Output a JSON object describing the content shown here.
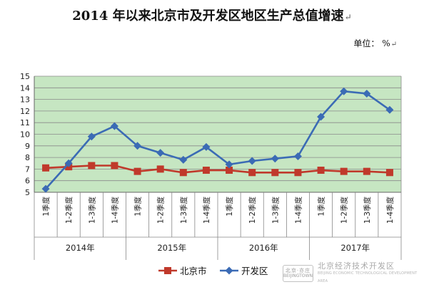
{
  "title": "2014 年以来北京市及开发区地区生产总值增速",
  "title_mark": "↵",
  "unit_label": "单位： %",
  "unit_mark": "↵",
  "watermark": {
    "logo_line1": "北京·亦庄",
    "logo_line2": "BEIJINGTOWN",
    "name_cn": "北京经济技术开发区",
    "name_en": "BEIJING ECONOMIC TECHNOLOGICAL DEVELOPMENT AREA"
  },
  "chart_data": {
    "type": "line",
    "ylim": [
      5,
      15
    ],
    "yticks": [
      "5",
      "6",
      "7",
      "8",
      "9",
      "10",
      "11",
      "12",
      "13",
      "14",
      "15"
    ],
    "grid": true,
    "plot_background": "#c6e6c2",
    "categories": [
      "1季度",
      "1-2季度",
      "1-3季度",
      "1-4季度",
      "1季度",
      "1-2季度",
      "1-3季度",
      "1-4季度",
      "1季度",
      "1-2季度",
      "1-3季度",
      "1-4季度",
      "1季度",
      "1-2季度",
      "1-3季度",
      "1-4季度"
    ],
    "groups": [
      {
        "label": "2014年",
        "count": 4
      },
      {
        "label": "2015年",
        "count": 4
      },
      {
        "label": "2016年",
        "count": 4
      },
      {
        "label": "2017年",
        "count": 4
      }
    ],
    "legend_position": "bottom",
    "series": [
      {
        "name": "北京市",
        "color": "#c0392b",
        "marker": "square",
        "values": [
          7.1,
          7.2,
          7.3,
          7.3,
          6.8,
          7.0,
          6.7,
          6.9,
          6.9,
          6.7,
          6.7,
          6.7,
          6.9,
          6.8,
          6.8,
          6.7
        ]
      },
      {
        "name": "开发区",
        "color": "#3b6bb5",
        "marker": "diamond",
        "values": [
          5.3,
          7.5,
          9.8,
          10.7,
          9.0,
          8.4,
          7.8,
          8.9,
          7.4,
          7.7,
          7.9,
          8.1,
          11.5,
          13.7,
          13.5,
          12.1
        ]
      }
    ]
  }
}
